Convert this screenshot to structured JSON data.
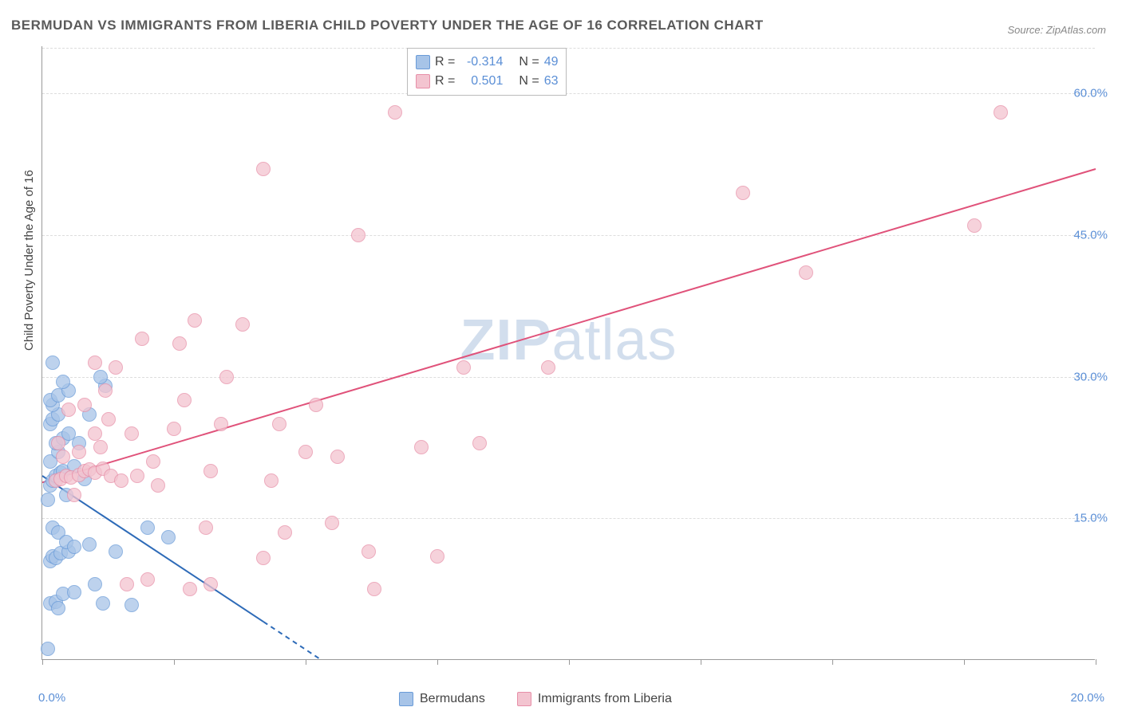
{
  "title": "BERMUDAN VS IMMIGRANTS FROM LIBERIA CHILD POVERTY UNDER THE AGE OF 16 CORRELATION CHART",
  "source_label": "Source: ZipAtlas.com",
  "watermark_zip": "ZIP",
  "watermark_atlas": "atlas",
  "y_axis_label": "Child Poverty Under the Age of 16",
  "chart": {
    "type": "scatter",
    "background_color": "#ffffff",
    "grid_color": "#dddddd",
    "axis_color": "#999999",
    "xlim": [
      0,
      20
    ],
    "ylim": [
      0,
      65
    ],
    "x_ticks": [
      0,
      2.5,
      5,
      7.5,
      10,
      12.5,
      15,
      17.5,
      20
    ],
    "x_tick_labels": {
      "0": "0.0%",
      "20": "20.0%"
    },
    "y_gridlines": [
      15,
      30,
      45,
      60
    ],
    "y_tick_labels": {
      "15": "15.0%",
      "30": "30.0%",
      "45": "45.0%",
      "60": "60.0%"
    },
    "marker_radius": 9,
    "marker_stroke_width": 1.5,
    "series": [
      {
        "name": "Bermudans",
        "fill_color": "#a7c4e8",
        "stroke_color": "#6a9bd8",
        "line_color": "#2e6bb8",
        "line_width": 2,
        "r_value": "-0.314",
        "n_value": "49",
        "trend": {
          "x1": 0,
          "y1": 19.5,
          "x2": 5.3,
          "y2": 0,
          "dash_from_x": 4.2
        },
        "points": [
          [
            0.1,
            1.2
          ],
          [
            0.15,
            6.0
          ],
          [
            0.25,
            6.2
          ],
          [
            0.3,
            5.5
          ],
          [
            0.4,
            7.0
          ],
          [
            0.6,
            7.2
          ],
          [
            0.15,
            10.5
          ],
          [
            0.2,
            11.0
          ],
          [
            0.25,
            10.8
          ],
          [
            0.35,
            11.3
          ],
          [
            0.5,
            11.5
          ],
          [
            0.2,
            14.0
          ],
          [
            0.3,
            13.5
          ],
          [
            0.45,
            12.5
          ],
          [
            0.6,
            12.0
          ],
          [
            0.9,
            12.2
          ],
          [
            1.4,
            11.5
          ],
          [
            0.1,
            17.0
          ],
          [
            0.15,
            18.5
          ],
          [
            0.2,
            19.0
          ],
          [
            0.25,
            19.5
          ],
          [
            0.35,
            19.8
          ],
          [
            0.4,
            20.0
          ],
          [
            0.15,
            21.0
          ],
          [
            0.3,
            22.0
          ],
          [
            0.25,
            23.0
          ],
          [
            0.4,
            23.5
          ],
          [
            0.5,
            24.0
          ],
          [
            0.15,
            25.0
          ],
          [
            0.2,
            25.5
          ],
          [
            0.3,
            26.0
          ],
          [
            0.2,
            27.0
          ],
          [
            0.15,
            27.5
          ],
          [
            0.3,
            28.0
          ],
          [
            0.5,
            28.5
          ],
          [
            0.4,
            29.5
          ],
          [
            1.2,
            29.0
          ],
          [
            1.1,
            30.0
          ],
          [
            0.2,
            31.5
          ],
          [
            2.0,
            14.0
          ],
          [
            2.4,
            13.0
          ],
          [
            1.7,
            5.8
          ],
          [
            1.15,
            6.0
          ],
          [
            0.8,
            19.2
          ],
          [
            0.9,
            26.0
          ],
          [
            0.6,
            20.5
          ],
          [
            0.7,
            23.0
          ],
          [
            0.45,
            17.5
          ],
          [
            1.0,
            8.0
          ]
        ]
      },
      {
        "name": "Immigrants from Liberia",
        "fill_color": "#f3c4d0",
        "stroke_color": "#e78fa8",
        "line_color": "#e0527a",
        "line_width": 2,
        "r_value": "0.501",
        "n_value": "63",
        "trend": {
          "x1": 0,
          "y1": 18.8,
          "x2": 20,
          "y2": 52.0
        },
        "points": [
          [
            0.25,
            19.0
          ],
          [
            0.35,
            19.2
          ],
          [
            0.45,
            19.5
          ],
          [
            0.55,
            19.3
          ],
          [
            0.7,
            19.6
          ],
          [
            0.8,
            20.0
          ],
          [
            0.9,
            20.2
          ],
          [
            1.0,
            19.8
          ],
          [
            1.15,
            20.3
          ],
          [
            1.3,
            19.5
          ],
          [
            1.5,
            19.0
          ],
          [
            0.4,
            21.5
          ],
          [
            0.7,
            22.0
          ],
          [
            1.0,
            24.0
          ],
          [
            1.25,
            25.5
          ],
          [
            1.2,
            28.5
          ],
          [
            1.4,
            31.0
          ],
          [
            1.8,
            19.5
          ],
          [
            2.2,
            18.5
          ],
          [
            2.5,
            24.5
          ],
          [
            2.7,
            27.5
          ],
          [
            2.6,
            33.5
          ],
          [
            2.9,
            36.0
          ],
          [
            3.1,
            14.0
          ],
          [
            3.2,
            20.0
          ],
          [
            3.4,
            25.0
          ],
          [
            3.5,
            30.0
          ],
          [
            3.8,
            35.5
          ],
          [
            4.2,
            10.8
          ],
          [
            4.35,
            19.0
          ],
          [
            4.5,
            25.0
          ],
          [
            4.6,
            13.5
          ],
          [
            5.0,
            22.0
          ],
          [
            5.2,
            27.0
          ],
          [
            5.5,
            14.5
          ],
          [
            5.6,
            21.5
          ],
          [
            6.0,
            45.0
          ],
          [
            6.2,
            11.5
          ],
          [
            6.3,
            7.5
          ],
          [
            6.7,
            58.0
          ],
          [
            7.2,
            22.5
          ],
          [
            7.5,
            11.0
          ],
          [
            8.0,
            31.0
          ],
          [
            8.3,
            23.0
          ],
          [
            4.2,
            52.0
          ],
          [
            3.2,
            8.0
          ],
          [
            2.8,
            7.5
          ],
          [
            2.0,
            8.5
          ],
          [
            1.6,
            8.0
          ],
          [
            9.6,
            31.0
          ],
          [
            13.3,
            49.5
          ],
          [
            14.5,
            41.0
          ],
          [
            17.7,
            46.0
          ],
          [
            18.2,
            58.0
          ],
          [
            0.5,
            26.5
          ],
          [
            1.0,
            31.5
          ],
          [
            1.7,
            24.0
          ],
          [
            2.1,
            21.0
          ],
          [
            0.6,
            17.5
          ],
          [
            0.3,
            23.0
          ],
          [
            0.8,
            27.0
          ],
          [
            1.1,
            22.5
          ],
          [
            1.9,
            34.0
          ]
        ]
      }
    ],
    "stats_legend": {
      "label_color": "#444444",
      "value_color": "#5b8fd6",
      "r_label": "R =",
      "n_label": "N ="
    },
    "bottom_legend_swatch_size": 18
  }
}
